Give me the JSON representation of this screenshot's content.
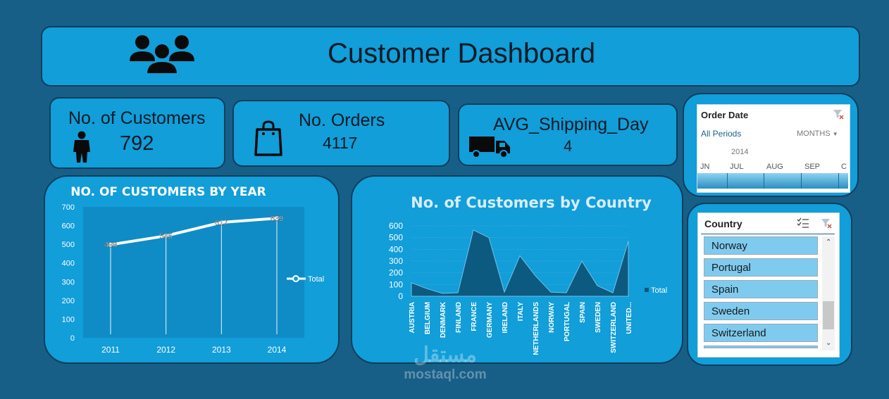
{
  "header": {
    "title": "Customer Dashboard",
    "icon": "people-group-icon"
  },
  "kpis": {
    "customers": {
      "label": "No. of Customers",
      "value": "792",
      "icon": "person-icon"
    },
    "orders": {
      "label": "No. Orders",
      "value": "4117",
      "icon": "shopping-bag-icon"
    },
    "shipping": {
      "label": "AVG_Shipping_Day",
      "value": "4",
      "icon": "truck-icon"
    }
  },
  "chart_data": [
    {
      "type": "line",
      "title": "NO. OF CUSTOMERS BY YEAR",
      "categories": [
        "2011",
        "2012",
        "2013",
        "2014"
      ],
      "series": [
        {
          "name": "Total",
          "values": [
            498,
            545,
            617,
            639
          ]
        }
      ],
      "data_labels": [
        "498",
        "545",
        "617",
        "639"
      ],
      "yticks": [
        "700",
        "600",
        "500",
        "400",
        "300",
        "200",
        "100",
        "0"
      ],
      "ylim": [
        0,
        700
      ],
      "legend": "right"
    },
    {
      "type": "area",
      "title": "No. of Customers by Country",
      "categories": [
        "AUSTRIA",
        "BELGIUM",
        "DENMARK",
        "FINLAND",
        "FRANCE",
        "GERMANY",
        "IRELAND",
        "ITALY",
        "NETHERLANDS",
        "NORWAY",
        "PORTUGAL",
        "SPAIN",
        "SWEDEN",
        "SWITZERLAND",
        "UNITED..."
      ],
      "series": [
        {
          "name": "Total",
          "values": [
            115,
            65,
            25,
            30,
            565,
            500,
            35,
            345,
            175,
            35,
            30,
            300,
            90,
            30,
            470
          ]
        }
      ],
      "yticks": [
        "600",
        "500",
        "400",
        "300",
        "200",
        "100",
        "0"
      ],
      "ylim": [
        0,
        600
      ],
      "legend": "right"
    }
  ],
  "order_date_slicer": {
    "title": "Order Date",
    "period_label": "All Periods",
    "unit_label": "MONTHS",
    "year": "2014",
    "months": [
      "JN",
      "JUL",
      "AUG",
      "SEP"
    ]
  },
  "country_slicer": {
    "title": "Country",
    "items": [
      "Norway",
      "Portugal",
      "Spain",
      "Sweden",
      "Switzerland"
    ]
  },
  "watermark": {
    "logo_text": "مستقل",
    "site": "mostaql.com"
  },
  "colors": {
    "background": "#175f86",
    "panel": "#119ed9",
    "area": "#0d5a80"
  }
}
